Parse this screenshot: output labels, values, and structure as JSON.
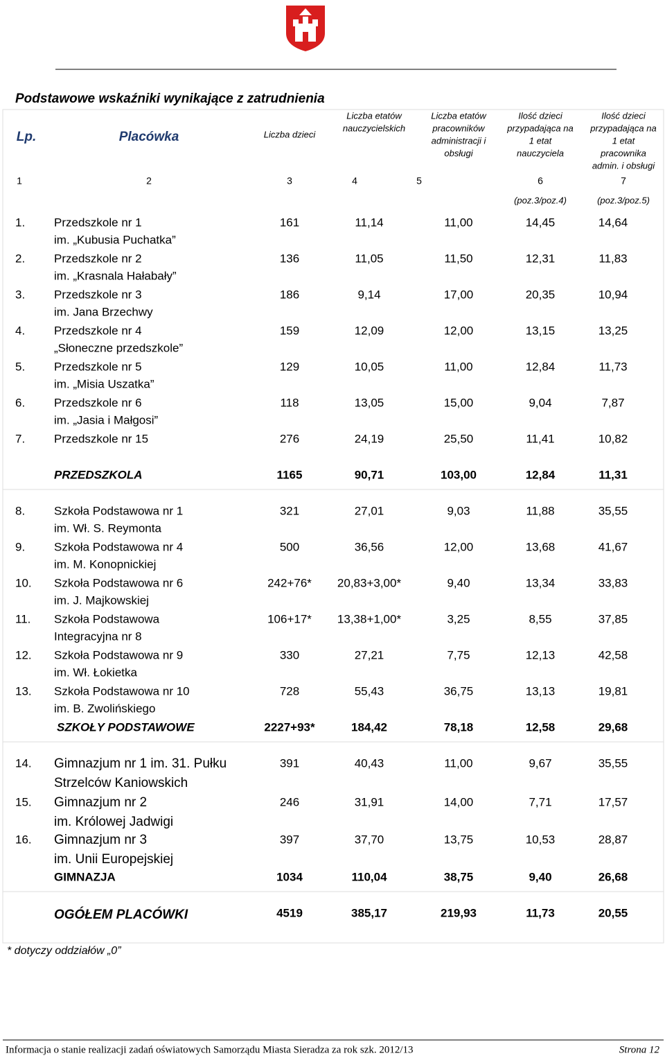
{
  "title": "Podstawowe wskaźniki wynikające z zatrudnienia",
  "columns": [
    [
      "Lp."
    ],
    [
      "Placówka"
    ],
    [
      "Liczba dzieci"
    ],
    [
      "Liczba etatów",
      "nauczycielskich"
    ],
    [
      "Liczba etatów",
      "pracowników",
      "administracji i",
      "obsługi"
    ],
    [
      "Ilość dzieci",
      "przypadająca na",
      "1 etat",
      "nauczyciela"
    ],
    [
      "Ilość dzieci",
      "przypadająca na",
      "1 etat",
      "pracownika",
      "admin. i obsługi"
    ]
  ],
  "column_numbers": [
    "1",
    "2",
    "3",
    "4",
    "5",
    "6",
    "7"
  ],
  "formulas": [
    "(poz.3/poz.4)",
    "(poz.3/poz.5)"
  ],
  "groups": [
    {
      "rows": [
        {
          "lp": "1.",
          "name": [
            "Przedszkole nr 1",
            "im. „Kubusia Puchatka”"
          ],
          "values": [
            "161",
            "11,14",
            "11,00",
            "14,45",
            "14,64"
          ]
        },
        {
          "lp": "2.",
          "name": [
            "Przedszkole nr 2",
            "im. „Krasnala Hałabały”"
          ],
          "values": [
            "136",
            "11,05",
            "11,50",
            "12,31",
            "11,83"
          ]
        },
        {
          "lp": "3.",
          "name": [
            "Przedszkole nr 3",
            "im. Jana Brzechwy"
          ],
          "values": [
            "186",
            "9,14",
            "17,00",
            "20,35",
            "10,94"
          ]
        },
        {
          "lp": "4.",
          "name": [
            "Przedszkole nr 4",
            "„Słoneczne przedszkole”"
          ],
          "values": [
            "159",
            "12,09",
            "12,00",
            "13,15",
            "13,25"
          ]
        },
        {
          "lp": "5.",
          "name": [
            "Przedszkole nr 5",
            "im. „Misia Uszatka”"
          ],
          "values": [
            "129",
            "10,05",
            "11,00",
            "12,84",
            "11,73"
          ]
        },
        {
          "lp": "6.",
          "name": [
            "Przedszkole nr 6",
            "im. „Jasia i Małgosi”"
          ],
          "values": [
            "118",
            "13,05",
            "15,00",
            "9,04",
            "7,87"
          ]
        },
        {
          "lp": "7.",
          "name": [
            "Przedszkole nr 15"
          ],
          "values": [
            "276",
            "24,19",
            "25,50",
            "11,41",
            "10,82"
          ]
        }
      ],
      "summary": {
        "label": "PRZEDSZKOLA",
        "values": [
          "1165",
          "90,71",
          "103,00",
          "12,84",
          "11,31"
        ]
      }
    },
    {
      "rows": [
        {
          "lp": "8.",
          "name": [
            "Szkoła Podstawowa nr 1",
            "im. Wł. S. Reymonta"
          ],
          "values": [
            "321",
            "27,01",
            "9,03",
            "11,88",
            "35,55"
          ]
        },
        {
          "lp": "9.",
          "name": [
            "Szkoła Podstawowa nr 4",
            "im. M. Konopnickiej"
          ],
          "values": [
            "500",
            "36,56",
            "12,00",
            "13,68",
            "41,67"
          ]
        },
        {
          "lp": "10.",
          "name": [
            "Szkoła Podstawowa nr 6",
            "im. J. Majkowskiej"
          ],
          "values": [
            "242+76*",
            "20,83+3,00*",
            "9,40",
            "13,34",
            "33,83"
          ]
        },
        {
          "lp": "11.",
          "name": [
            "Szkoła Podstawowa",
            "Integracyjna nr 8"
          ],
          "values": [
            "106+17*",
            "13,38+1,00*",
            "3,25",
            "8,55",
            "37,85"
          ]
        },
        {
          "lp": "12.",
          "name": [
            "Szkoła Podstawowa nr 9",
            "im. Wł. Łokietka"
          ],
          "values": [
            "330",
            "27,21",
            "7,75",
            "12,13",
            "42,58"
          ]
        },
        {
          "lp": "13.",
          "name": [
            "Szkoła Podstawowa nr 10",
            "im. B. Zwolińskiego"
          ],
          "values": [
            "728",
            "55,43",
            "36,75",
            "13,13",
            "19,81"
          ]
        }
      ],
      "summary": {
        "label": "SZKOŁY PODSTAWOWE",
        "values": [
          "2227+93*",
          "184,42",
          "78,18",
          "12,58",
          "29,68"
        ]
      }
    },
    {
      "rows": [
        {
          "lp": "14.",
          "name": [
            "Gimnazjum  nr 1 im. 31. Pułku",
            "Strzelców Kaniowskich"
          ],
          "values": [
            "391",
            "40,43",
            "11,00",
            "9,67",
            "35,55"
          ]
        },
        {
          "lp": "15.",
          "name": [
            "Gimnazjum  nr 2",
            "im. Królowej Jadwigi"
          ],
          "values": [
            "246",
            "31,91",
            "14,00",
            "7,71",
            "17,57"
          ]
        },
        {
          "lp": "16.",
          "name": [
            "Gimnazjum  nr 3",
            "im. Unii Europejskiej"
          ],
          "values": [
            "397",
            "37,70",
            "13,75",
            "10,53",
            "28,87"
          ]
        }
      ],
      "summary": {
        "label": "GIMNAZJA",
        "values": [
          "1034",
          "110,04",
          "38,75",
          "9,40",
          "26,68"
        ]
      }
    }
  ],
  "total": {
    "label": "OGÓŁEM  PLACÓWKI",
    "values": [
      "4519",
      "385,17",
      "219,93",
      "11,73",
      "20,55"
    ]
  },
  "footnote": "* dotyczy oddziałów „0”",
  "footer": {
    "left": "Informacja o stanie realizacji zadań oświatowych Samorządu Miasta Sieradza za rok szk. 2012/13",
    "right": "Strona 12"
  }
}
